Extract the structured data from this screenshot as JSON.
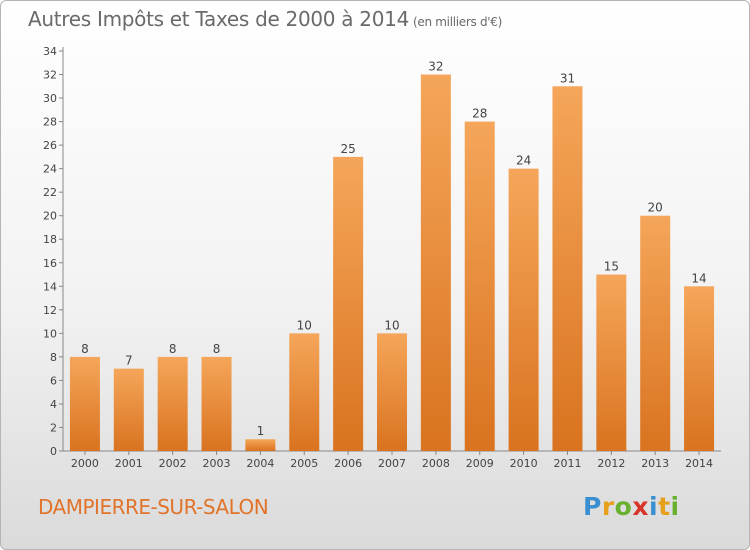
{
  "header": {
    "title": "Autres Impôts et Taxes de 2000 à 2014",
    "unit_note": "(en milliers d'€)"
  },
  "footer": {
    "commune": "DAMPIERRE-SUR-SALON",
    "logo_letters": [
      "P",
      "r",
      "o",
      "x",
      "i",
      "t",
      "i"
    ],
    "logo_colors": [
      "#3a8fd0",
      "#e8a01c",
      "#69b02e",
      "#d8342a",
      "#3a8fd0",
      "#e8a01c",
      "#69b02e"
    ]
  },
  "chart_data": {
    "type": "bar",
    "title": "Autres Impôts et Taxes de 2000 à 2014",
    "subtitle": "(en milliers d'€)",
    "xlabel": "",
    "ylabel": "",
    "categories": [
      "2000",
      "2001",
      "2002",
      "2003",
      "2004",
      "2005",
      "2006",
      "2007",
      "2008",
      "2009",
      "2010",
      "2011",
      "2012",
      "2013",
      "2014"
    ],
    "values": [
      8,
      7,
      8,
      8,
      1,
      10,
      25,
      10,
      32,
      28,
      24,
      31,
      15,
      20,
      14
    ],
    "ylim": [
      0,
      34
    ],
    "yticks": [
      0,
      2,
      4,
      6,
      8,
      10,
      12,
      14,
      16,
      18,
      20,
      22,
      24,
      26,
      28,
      30,
      32,
      34
    ],
    "grid": false,
    "bar_color_top": "#f5a65a",
    "bar_color_bottom": "#d9731f"
  }
}
